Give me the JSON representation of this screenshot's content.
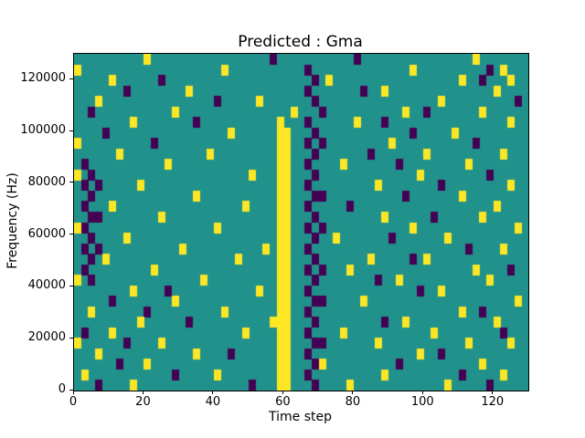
{
  "title": "Predicted : Gma",
  "chart_data": {
    "type": "heatmap",
    "title": "Predicted : Gma",
    "xlabel": "Time step",
    "ylabel": "Frequency (Hz)",
    "xlim": [
      0,
      130
    ],
    "ylim": [
      0,
      130000
    ],
    "xticks": [
      0,
      20,
      40,
      60,
      80,
      100,
      120
    ],
    "yticks": [
      0,
      20000,
      40000,
      60000,
      80000,
      100000,
      120000
    ],
    "grid_cols": 65,
    "grid_rows": 32,
    "x_cell_size_steps": 2,
    "y_cell_size_hz": 4062.5,
    "legend": "none",
    "colors": {
      "background_mid": "#21918c",
      "high_yellow": "#fde725",
      "low_purple": "#440154",
      "axis": "#000000"
    },
    "value_encoding": {
      "1": "mid (teal)",
      "2": "high (yellow)",
      "0": "low (purple)"
    },
    "notes": "Binary-spike spectrogram-like raster; strong yellow vertical band near time step 58-62, dense purple band near time step 66-72, purple cluster near left edge at 40000-84000 Hz. Rows listed top (≈128000 Hz) to bottom (0 Hz); y = yellow column indices, p = purple column indices, all other cells teal.",
    "cells": [
      {
        "y": [
          10,
          57
        ],
        "p": [
          28,
          40
        ]
      },
      {
        "y": [
          0,
          21,
          48,
          61
        ],
        "p": [
          33,
          59
        ]
      },
      {
        "y": [
          5,
          36,
          55,
          62
        ],
        "p": [
          12,
          34,
          58
        ]
      },
      {
        "y": [
          16,
          44,
          60
        ],
        "p": [
          7,
          33,
          41
        ]
      },
      {
        "y": [
          3,
          26,
          52
        ],
        "p": [
          20,
          34,
          63
        ]
      },
      {
        "y": [
          14,
          31,
          47,
          58
        ],
        "p": [
          2,
          35,
          50
        ]
      },
      {
        "y": [
          8,
          29,
          40,
          62
        ],
        "p": [
          17,
          33,
          44
        ]
      },
      {
        "y": [
          22,
          29,
          30,
          54
        ],
        "p": [
          4,
          34,
          48
        ]
      },
      {
        "y": [
          0,
          29,
          30,
          45
        ],
        "p": [
          11,
          33,
          35,
          57
        ]
      },
      {
        "y": [
          6,
          19,
          29,
          30,
          50,
          61
        ],
        "p": [
          34,
          42
        ]
      },
      {
        "y": [
          13,
          29,
          30,
          38,
          56
        ],
        "p": [
          1,
          33,
          46
        ]
      },
      {
        "y": [
          0,
          25,
          29,
          30,
          49
        ],
        "p": [
          2,
          34,
          59
        ]
      },
      {
        "y": [
          9,
          29,
          30,
          43,
          62
        ],
        "p": [
          1,
          3,
          33,
          52
        ]
      },
      {
        "y": [
          17,
          29,
          30,
          55
        ],
        "p": [
          2,
          34,
          35,
          47
        ]
      },
      {
        "y": [
          5,
          24,
          29,
          30,
          60
        ],
        "p": [
          1,
          33,
          39
        ]
      },
      {
        "y": [
          12,
          29,
          30,
          44,
          58
        ],
        "p": [
          2,
          3,
          34,
          51
        ]
      },
      {
        "y": [
          0,
          20,
          29,
          30,
          48,
          63
        ],
        "p": [
          1,
          33,
          35
        ]
      },
      {
        "y": [
          7,
          29,
          30,
          37,
          53
        ],
        "p": [
          2,
          34,
          45
        ]
      },
      {
        "y": [
          15,
          27,
          29,
          30,
          61
        ],
        "p": [
          1,
          3,
          33,
          56
        ]
      },
      {
        "y": [
          4,
          23,
          29,
          30,
          42,
          50
        ],
        "p": [
          2,
          34,
          48
        ]
      },
      {
        "y": [
          11,
          29,
          30,
          39,
          57
        ],
        "p": [
          1,
          33,
          35,
          62
        ]
      },
      {
        "y": [
          0,
          18,
          29,
          30,
          46,
          59
        ],
        "p": [
          2,
          34,
          43
        ]
      },
      {
        "y": [
          8,
          26,
          29,
          30,
          52
        ],
        "p": [
          13,
          33,
          49
        ]
      },
      {
        "y": [
          14,
          29,
          30,
          41,
          63
        ],
        "p": [
          5,
          34,
          35
        ]
      },
      {
        "y": [
          2,
          21,
          29,
          30,
          55
        ],
        "p": [
          10,
          33,
          58
        ]
      },
      {
        "y": [
          9,
          28,
          29,
          30,
          47,
          60
        ],
        "p": [
          16,
          34,
          44
        ]
      },
      {
        "y": [
          5,
          24,
          29,
          30,
          38,
          51
        ],
        "p": [
          1,
          33,
          61
        ]
      },
      {
        "y": [
          0,
          12,
          29,
          30,
          43,
          56,
          62
        ],
        "p": [
          7,
          34,
          35
        ]
      },
      {
        "y": [
          3,
          17,
          29,
          30,
          49
        ],
        "p": [
          22,
          33,
          52
        ]
      },
      {
        "y": [
          10,
          29,
          30,
          35,
          58
        ],
        "p": [
          6,
          34,
          46
        ]
      },
      {
        "y": [
          1,
          20,
          29,
          30,
          44,
          61
        ],
        "p": [
          14,
          33,
          55
        ]
      },
      {
        "y": [
          8,
          29,
          30,
          39,
          53
        ],
        "p": [
          3,
          25,
          34,
          59
        ]
      }
    ]
  }
}
